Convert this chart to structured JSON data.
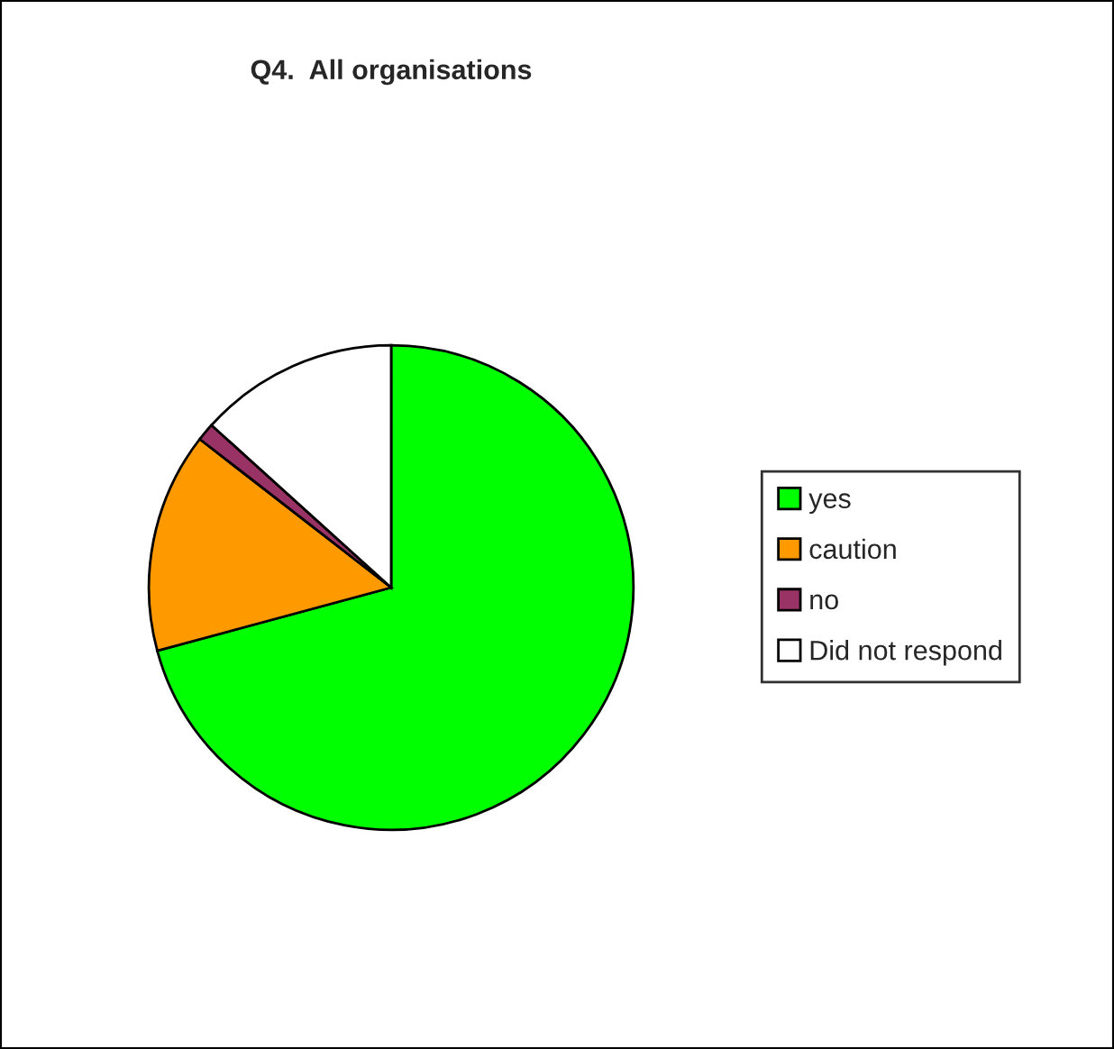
{
  "chart_data": {
    "type": "pie",
    "title": "Q4.  All organisations",
    "categories": [
      "yes",
      "caution",
      "no",
      "Did not respond"
    ],
    "values": [
      70.8,
      14.7,
      1.2,
      13.3
    ],
    "colors": [
      "#00ff00",
      "#ff9900",
      "#993366",
      "#ffffff"
    ],
    "legend": "right"
  }
}
